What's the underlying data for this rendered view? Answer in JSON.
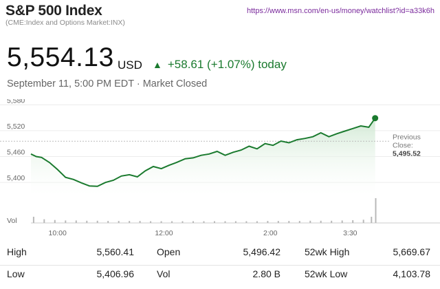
{
  "header": {
    "title": "S&P 500 Index",
    "subtitle": "(CME:Index and Options Market:INX)",
    "url": "https://www.msn.com/en-us/money/watchlist?id=a33k6h"
  },
  "quote": {
    "price": "5,554.13",
    "currency": "USD",
    "change": "+58.61 (+1.07%) today",
    "timestamp": "September 11, 5:00 PM EDT · Market Closed"
  },
  "colors": {
    "line": "#1a7a2e",
    "up": "#1a7a2e",
    "fill_top": "#cfe8d2"
  },
  "chart_data": {
    "type": "area",
    "y_ticks": [
      5580,
      5520,
      5460,
      5400
    ],
    "y_tick_labels": [
      "5,580",
      "5,520",
      "5,460",
      "5,400"
    ],
    "x_tick_labels": [
      "10:00",
      "12:00",
      "2:00",
      "3:30"
    ],
    "x_tick_hours": [
      10,
      12,
      14,
      15.5
    ],
    "ylim": [
      5370,
      5590
    ],
    "xlim": [
      9.5,
      16.0
    ],
    "previous_close": {
      "label_line1": "Previous",
      "label_line2": "Close:",
      "value_label": "5,495.52",
      "value": 5495.52
    },
    "volume_label": "Vol",
    "series": [
      {
        "x": [
          9.5,
          9.6,
          9.7,
          9.85,
          10.0,
          10.15,
          10.3,
          10.45,
          10.6,
          10.75,
          10.9,
          11.05,
          11.2,
          11.35,
          11.5,
          11.65,
          11.8,
          11.95,
          12.1,
          12.25,
          12.4,
          12.55,
          12.7,
          12.85,
          13.0,
          13.15,
          13.3,
          13.45,
          13.6,
          13.75,
          13.9,
          14.05,
          14.2,
          14.35,
          14.5,
          14.65,
          14.8,
          14.95,
          15.1,
          15.25,
          15.4,
          15.55,
          15.7,
          15.85,
          15.97
        ],
        "y": [
          5466,
          5460,
          5458,
          5446,
          5430,
          5412,
          5407,
          5399,
          5392,
          5391,
          5400,
          5405,
          5415,
          5418,
          5413,
          5427,
          5437,
          5432,
          5440,
          5447,
          5455,
          5457,
          5463,
          5466,
          5472,
          5463,
          5470,
          5475,
          5484,
          5478,
          5490,
          5486,
          5496,
          5492,
          5499,
          5502,
          5506,
          5515,
          5506,
          5513,
          5519,
          5525,
          5531,
          5528,
          5549
        ]
      }
    ],
    "volume": {
      "x": [
        9.55,
        9.75,
        9.95,
        10.15,
        10.35,
        10.55,
        10.75,
        10.95,
        11.15,
        11.35,
        11.55,
        11.75,
        11.95,
        12.15,
        12.35,
        12.55,
        12.75,
        12.95,
        13.15,
        13.35,
        13.55,
        13.75,
        13.95,
        14.15,
        14.35,
        14.55,
        14.75,
        14.95,
        15.15,
        15.35,
        15.55,
        15.75,
        15.9,
        15.98
      ],
      "v": [
        0.25,
        0.15,
        0.12,
        0.1,
        0.1,
        0.09,
        0.09,
        0.08,
        0.08,
        0.08,
        0.08,
        0.07,
        0.07,
        0.07,
        0.07,
        0.07,
        0.07,
        0.07,
        0.07,
        0.07,
        0.07,
        0.07,
        0.08,
        0.08,
        0.08,
        0.08,
        0.09,
        0.09,
        0.09,
        0.1,
        0.11,
        0.13,
        0.25,
        1.0
      ]
    }
  },
  "stats": {
    "row1": [
      {
        "label": "High",
        "value": "5,560.41"
      },
      {
        "label": "Open",
        "value": "5,496.42"
      },
      {
        "label": "52wk High",
        "value": "5,669.67"
      }
    ],
    "row2": [
      {
        "label": "Low",
        "value": "5,406.96"
      },
      {
        "label": "Vol",
        "value": "2.80 B"
      },
      {
        "label": "52wk Low",
        "value": "4,103.78"
      }
    ]
  }
}
